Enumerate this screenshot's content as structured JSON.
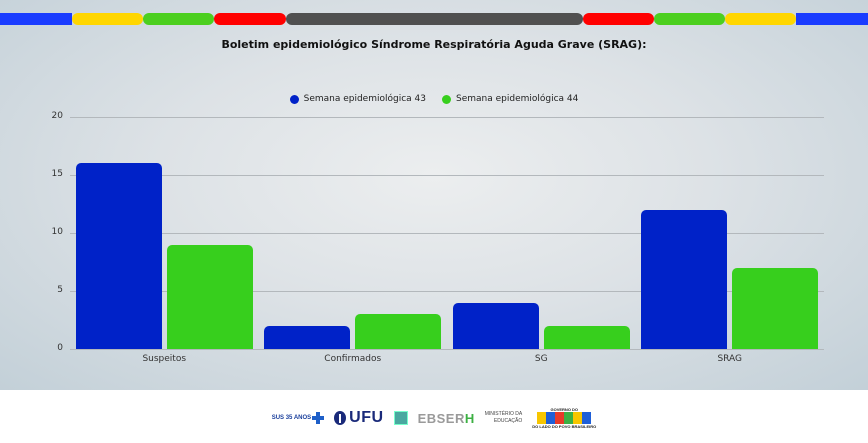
{
  "header": {
    "title": "Boletim epidemiológico Síndrome Respiratória Aguda Grave (SRAG):",
    "stripe_colors": [
      "#1a3cff",
      "#ffd600",
      "#4ccf1f",
      "#ff0000",
      "#505050",
      "#ff0000",
      "#4ccf1f",
      "#ffd600",
      "#1a3cff"
    ]
  },
  "legend": {
    "items": [
      {
        "label": "Semana epidemiológica 43",
        "color": "#0022c8"
      },
      {
        "label": "Semana epidemiológica 44",
        "color": "#37cf1d"
      }
    ]
  },
  "axis": {
    "y_ticks": [
      "0",
      "5",
      "10",
      "15",
      "20"
    ]
  },
  "categories": [
    "Suspeitos",
    "Confirmados",
    "SG",
    "SRAG"
  ],
  "footer": {
    "logos": {
      "sus": "SUS 35 ANOS",
      "ufu": "UFU",
      "ebserh_prefix": "EBSER",
      "ebserh_suffix": "H",
      "mec_line1": "MINISTÉRIO DA",
      "mec_line2": "EDUCAÇÃO",
      "brasil_top": "GOVERNO DO",
      "brasil_bottom": "DO LADO DO POVO BRASILEIRO"
    }
  },
  "chart_data": {
    "type": "bar",
    "title": "Boletim epidemiológico Síndrome Respiratória Aguda Grave (SRAG):",
    "categories": [
      "Suspeitos",
      "Confirmados",
      "SG",
      "SRAG"
    ],
    "series": [
      {
        "name": "Semana epidemiológica 43",
        "color": "#0022c8",
        "values": [
          16,
          2,
          4,
          12
        ]
      },
      {
        "name": "Semana epidemiológica 44",
        "color": "#37cf1d",
        "values": [
          9,
          3,
          2,
          7
        ]
      }
    ],
    "xlabel": "",
    "ylabel": "",
    "ylim": [
      0,
      20
    ],
    "y_ticks": [
      0,
      5,
      10,
      15,
      20
    ],
    "grid": true,
    "legend_position": "top"
  }
}
